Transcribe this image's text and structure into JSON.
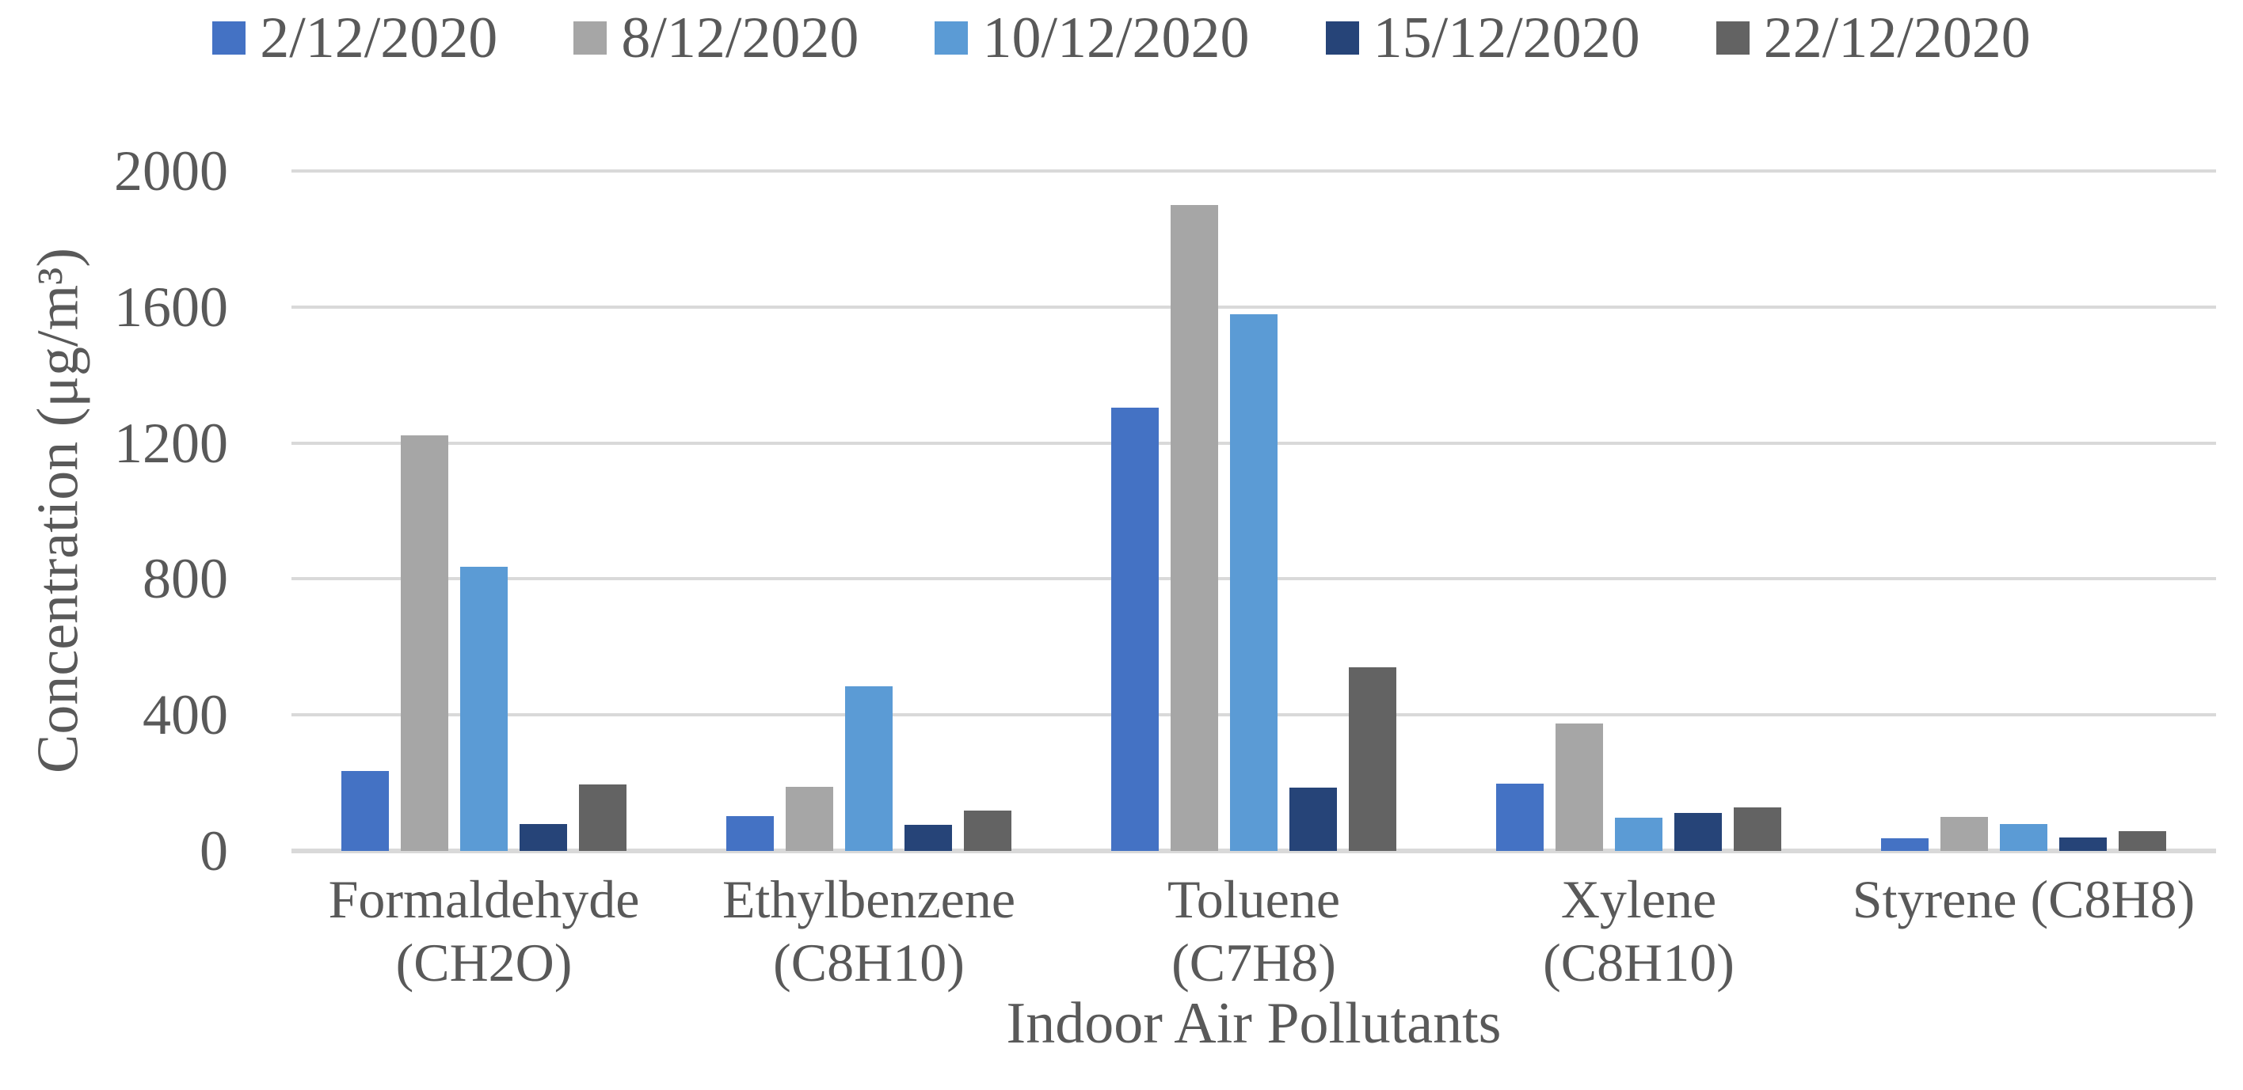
{
  "chart_data": {
    "type": "bar",
    "title": "",
    "xlabel": "Indoor Air Pollutants",
    "ylabel": "Concentration (μg/m³)",
    "categories": [
      "Formaldehyde\n(CH2O)",
      "Ethylbenzene\n(C8H10)",
      "Toluene\n(C7H8)",
      "Xylene\n(C8H10)",
      "Styrene (C8H8)"
    ],
    "series": [
      {
        "name": "2/12/2020",
        "color": "#4472C4",
        "values": [
          235,
          103,
          1305,
          197,
          38
        ]
      },
      {
        "name": "8/12/2020",
        "color": "#A6A6A6",
        "values": [
          1222,
          188,
          1900,
          375,
          101
        ]
      },
      {
        "name": "10/12/2020",
        "color": "#5B9BD5",
        "values": [
          835,
          484,
          1578,
          97,
          79
        ]
      },
      {
        "name": "15/12/2020",
        "color": "#264478",
        "values": [
          80,
          78,
          186,
          111,
          40
        ]
      },
      {
        "name": "22/12/2020",
        "color": "#636363",
        "values": [
          196,
          118,
          540,
          128,
          58
        ]
      }
    ],
    "ylim": [
      0,
      2000
    ],
    "y_ticks": [
      0,
      400,
      800,
      1200,
      1600,
      2000
    ],
    "grid": "horizontal",
    "legend_position": "top",
    "text_color": "#595959",
    "gridline_color": "#D9D9D9",
    "background_color": "#FFFFFF"
  }
}
